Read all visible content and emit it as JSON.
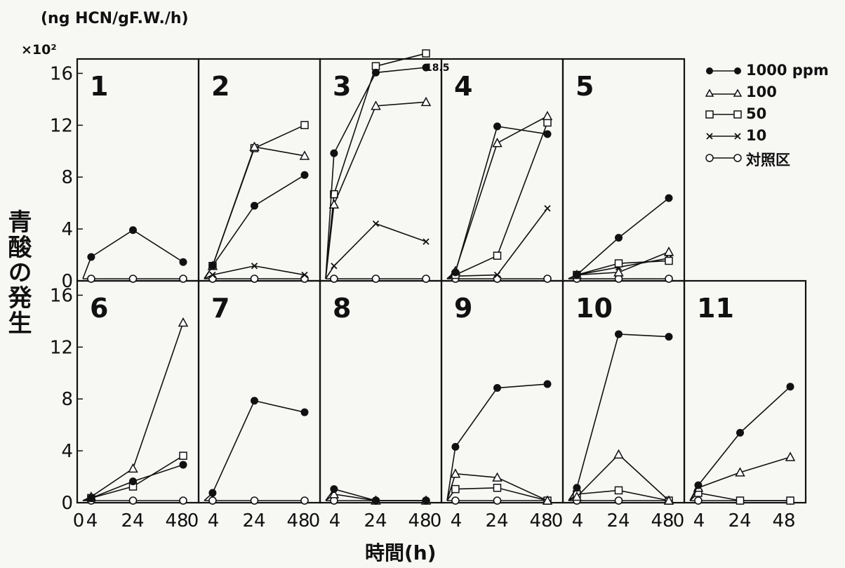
{
  "unit_label": "(ng HCN/gF.W./h)",
  "scale_label": "×10²",
  "ylabel": "青酸の発生",
  "xlabel": "時間(h)",
  "chart_data": {
    "type": "line",
    "ylim": [
      0,
      17
    ],
    "xlim": [
      0,
      48
    ],
    "yticks": [
      "0",
      "4",
      "8",
      "12",
      "16"
    ],
    "xticks": [
      "0",
      "4",
      "24",
      "48"
    ],
    "legend_placement": "right",
    "series_legend": [
      {
        "key": "s1000",
        "name": "1000 ppm",
        "marker": "filled-circle"
      },
      {
        "key": "s100",
        "name": "100",
        "marker": "triangle"
      },
      {
        "key": "s50",
        "name": "50",
        "marker": "square"
      },
      {
        "key": "s10",
        "name": "10",
        "marker": "x"
      },
      {
        "key": "ctrl",
        "name": "対照区",
        "marker": "open-circle"
      }
    ],
    "x": [
      0,
      4,
      24,
      48
    ],
    "panels": [
      {
        "id": "1",
        "series": {
          "s1000": [
            0,
            1.7,
            3.8,
            1.3
          ],
          "ctrl": [
            0,
            0,
            0,
            0
          ]
        }
      },
      {
        "id": "2",
        "series": {
          "s1000": [
            0,
            1.0,
            5.7,
            8.1
          ],
          "s100": [
            0,
            1.0,
            10.3,
            9.6
          ],
          "s50": [
            0,
            1.0,
            10.2,
            12.0
          ],
          "s10": [
            0,
            0.3,
            1.0,
            0.3
          ],
          "ctrl": [
            0,
            0,
            0,
            0
          ]
        }
      },
      {
        "id": "3",
        "annotation": "18.5",
        "series": {
          "s1000": [
            0,
            9.8,
            16.1,
            16.5
          ],
          "s100": [
            0,
            5.8,
            13.5,
            13.8
          ],
          "s50": [
            0,
            6.6,
            16.6,
            17.6
          ],
          "s10": [
            0,
            1.0,
            4.3,
            2.9
          ],
          "ctrl": [
            0,
            0,
            0,
            0
          ]
        }
      },
      {
        "id": "4",
        "series": {
          "s1000": [
            0,
            0.5,
            11.9,
            11.3
          ],
          "s100": [
            0,
            0.6,
            10.6,
            12.7
          ],
          "s50": [
            0,
            0.3,
            1.8,
            12.2
          ],
          "s10": [
            0,
            0.2,
            0.3,
            5.5
          ],
          "ctrl": [
            0,
            0,
            0,
            0
          ]
        }
      },
      {
        "id": "5",
        "series": {
          "s1000": [
            0,
            0.3,
            3.2,
            6.3
          ],
          "s100": [
            0,
            0.3,
            0.5,
            2.1
          ],
          "s50": [
            0,
            0.3,
            1.2,
            1.4
          ],
          "s10": [
            0,
            0.3,
            0.9,
            1.6
          ],
          "ctrl": [
            0,
            0,
            0,
            0
          ]
        }
      },
      {
        "id": "6",
        "series": {
          "s1000": [
            0,
            0.2,
            1.5,
            2.8
          ],
          "s100": [
            0,
            0.3,
            2.5,
            13.9
          ],
          "s50": [
            0,
            0.2,
            1.1,
            3.5
          ],
          "ctrl": [
            0,
            0,
            0,
            0
          ]
        }
      },
      {
        "id": "7",
        "series": {
          "s1000": [
            0,
            0.6,
            7.8,
            6.9
          ],
          "ctrl": [
            0,
            0,
            0,
            0
          ]
        }
      },
      {
        "id": "8",
        "series": {
          "s1000": [
            0,
            0.9,
            0,
            0
          ],
          "s100": [
            0,
            0.5,
            0,
            0
          ],
          "ctrl": [
            0,
            0,
            0,
            0
          ]
        }
      },
      {
        "id": "9",
        "series": {
          "s1000": [
            0,
            4.2,
            8.8,
            9.1
          ],
          "s100": [
            0,
            2.1,
            1.8,
            0
          ],
          "s50": [
            0,
            0.9,
            1.0,
            0
          ],
          "ctrl": [
            0,
            0,
            0,
            0
          ]
        }
      },
      {
        "id": "10",
        "series": {
          "s1000": [
            0,
            1.0,
            13.0,
            12.8
          ],
          "s100": [
            0,
            0.3,
            3.6,
            0
          ],
          "s50": [
            0,
            0.5,
            0.8,
            0
          ],
          "ctrl": [
            0,
            0,
            0,
            0
          ]
        }
      },
      {
        "id": "11",
        "series": {
          "s1000": [
            0,
            1.2,
            5.3,
            8.9
          ],
          "s100": [
            0,
            1.0,
            2.2,
            3.4
          ],
          "s50": [
            0,
            0.6,
            0,
            0
          ],
          "ctrl": [
            0,
            0,
            0,
            0
          ]
        }
      }
    ]
  }
}
